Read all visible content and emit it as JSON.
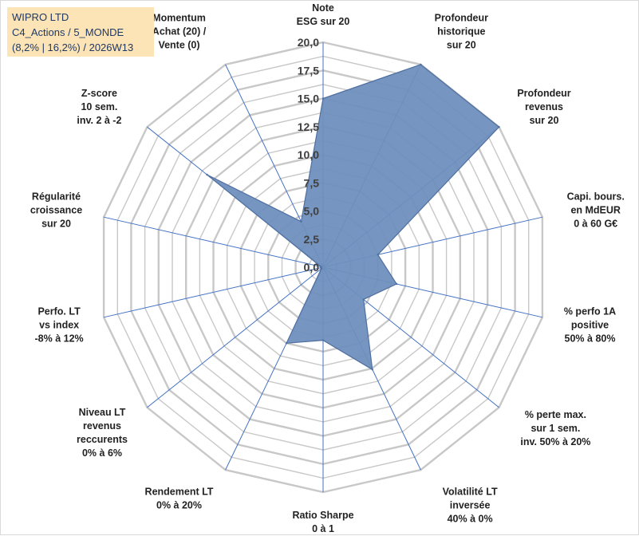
{
  "title_box": {
    "line1": "WIPRO LTD",
    "line2": "C4_Actions / 5_MONDE",
    "line3": "(8,2% | 16,2%) / 2026W13",
    "background": "#fce4b6",
    "text_color": "#1f3864"
  },
  "chart_data": {
    "type": "radar",
    "title": "",
    "rmin": 0,
    "rmax": 20,
    "tick_step": 1.25,
    "tick_labels": [
      "0,0",
      "2,5",
      "5,0",
      "7,5",
      "10,0",
      "12,5",
      "15,0",
      "17,5",
      "20,0"
    ],
    "axes": [
      {
        "label": [
          "Note",
          "ESG sur 20"
        ]
      },
      {
        "label": [
          "Profondeur",
          "historique",
          "sur 20"
        ]
      },
      {
        "label": [
          "Profondeur",
          "revenus",
          "sur 20"
        ]
      },
      {
        "label": [
          "Capi. bours.",
          "en MdEUR",
          "0 à 60 G€"
        ]
      },
      {
        "label": [
          "% perfo 1A",
          "positive",
          "50% à 80%"
        ]
      },
      {
        "label": [
          "% perte max.",
          "sur 1 sem.",
          "inv. 50% à 20%"
        ]
      },
      {
        "label": [
          "Volatilité LT",
          "inversée",
          "40% à 0%"
        ]
      },
      {
        "label": [
          "Ratio Sharpe",
          "0 à 1"
        ]
      },
      {
        "label": [
          "Rendement LT",
          "0% à 20%"
        ]
      },
      {
        "label": [
          "Niveau LT",
          "revenus",
          "reccurents",
          "0% à 6%"
        ]
      },
      {
        "label": [
          "Perfo. LT",
          "vs index",
          "-8% à 12%"
        ]
      },
      {
        "label": [
          "Régularité",
          "croissance",
          "sur 20"
        ]
      },
      {
        "label": [
          "Z-score",
          "10 sem.",
          "inv. 2 à -2"
        ]
      },
      {
        "label": [
          "Momentum",
          "Achat (20) /",
          "Vente (0)"
        ]
      }
    ],
    "series": [
      {
        "name": "WIPRO LTD",
        "values": [
          15.0,
          20.0,
          20.0,
          5.0,
          6.7,
          4.6,
          10.1,
          6.5,
          7.5,
          0.2,
          0.2,
          0.2,
          13.2,
          4.5
        ],
        "fill": "#6f8fbd",
        "stroke": "#4f6fa0"
      }
    ],
    "grid_color": "#c8c8c8",
    "spoke_color": "#4472c4"
  }
}
